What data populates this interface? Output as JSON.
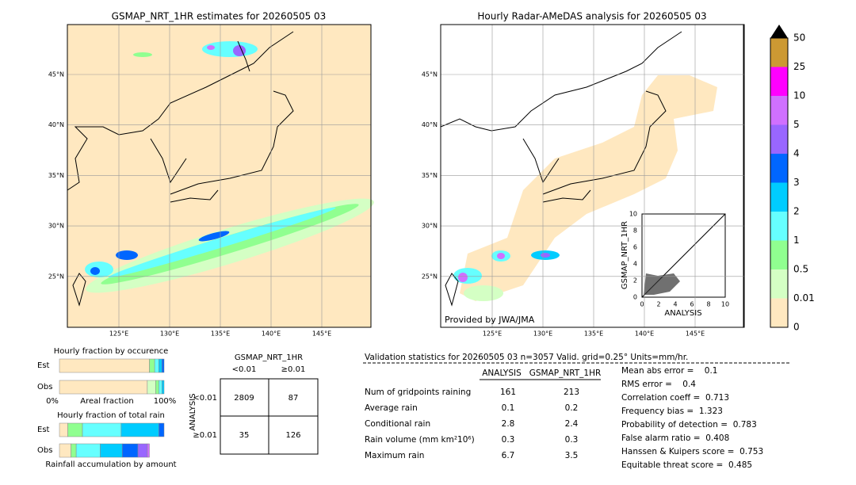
{
  "left_map": {
    "title": "GSMAP_NRT_1HR estimates for 20260505 03",
    "lat_labels": [
      "45°N",
      "40°N",
      "35°N",
      "30°N",
      "25°N"
    ],
    "lon_labels": [
      "125°E",
      "130°E",
      "135°E",
      "140°E",
      "145°E"
    ]
  },
  "right_map": {
    "title": "Hourly Radar-AMeDAS analysis for 20260505 03",
    "lat_labels": [
      "45°N",
      "40°N",
      "35°N",
      "30°N",
      "25°N"
    ],
    "lon_labels": [
      "125°E",
      "130°E",
      "135°E",
      "140°E",
      "145°E"
    ],
    "credit": "Provided by JWA/JMA"
  },
  "colorbar": {
    "labels": [
      "0",
      "0.01",
      "0.5",
      "1",
      "2",
      "3",
      "4",
      "5",
      "10",
      "25",
      "50"
    ],
    "colors": [
      "#ffe8c0",
      "#d4ffc4",
      "#90ff90",
      "#66ffff",
      "#00ccff",
      "#0066ff",
      "#9966ff",
      "#d070ff",
      "#ff00ff",
      "#cc9933"
    ],
    "extend_color": "#000000"
  },
  "scatter": {
    "xlabel": "ANALYSIS",
    "ylabel": "GSMAP_NRT_1HR",
    "xticks": [
      0,
      2,
      4,
      6,
      8,
      10
    ],
    "yticks": [
      0,
      2,
      4,
      6,
      8,
      10
    ],
    "lim": [
      0,
      10
    ]
  },
  "occurrence": {
    "title": "Hourly fraction by occurence",
    "rows": [
      "Est",
      "Obs"
    ],
    "left": "0%",
    "middle": "Areal fraction",
    "right": "100%",
    "segments": [
      [
        86,
        5,
        4,
        3,
        2
      ],
      [
        84,
        8,
        3,
        3,
        2
      ]
    ],
    "colors": [
      [
        "#ffe8c0",
        "#90ff90",
        "#66ffff",
        "#00ccff",
        "#0066ff"
      ],
      [
        "#ffe8c0",
        "#d4ffc4",
        "#90ff90",
        "#66ffff",
        "#00ccff"
      ]
    ]
  },
  "total_rain": {
    "title": "Hourly fraction of total rain",
    "rows": [
      "Est",
      "Obs"
    ],
    "footer": "Rainfall accumulation by amount",
    "segments": [
      [
        8,
        14,
        37,
        36,
        5
      ],
      [
        11,
        5,
        23,
        21,
        15,
        9,
        2
      ]
    ],
    "colors": [
      [
        "#ffe8c0",
        "#90ff90",
        "#66ffff",
        "#00ccff",
        "#0066ff"
      ],
      [
        "#ffe8c0",
        "#90ff90",
        "#66ffff",
        "#00ccff",
        "#0066ff",
        "#9966ff",
        "#d070ff"
      ]
    ]
  },
  "contingency": {
    "title": "GSMAP_NRT_1HR",
    "col_labels": [
      "<0.01",
      "≥0.01"
    ],
    "row_title": "ANALYSIS",
    "row_labels": [
      "<0.01",
      "≥0.01"
    ],
    "cells": [
      [
        2809,
        87
      ],
      [
        35,
        126
      ]
    ]
  },
  "validation": {
    "header": "Validation statistics for 20260505 03  n=3057 Valid. grid=0.25° Units=mm/hr.",
    "columns": [
      "ANALYSIS",
      "GSMAP_NRT_1HR"
    ],
    "rows": [
      {
        "label": "Num of gridpoints raining",
        "values": [
          "161",
          "213"
        ]
      },
      {
        "label": "Average rain",
        "values": [
          "0.1",
          "0.2"
        ]
      },
      {
        "label": "Conditional rain",
        "values": [
          "2.8",
          "2.4"
        ]
      },
      {
        "label": "Rain volume (mm km²10⁶)",
        "values": [
          "0.3",
          "0.3"
        ]
      },
      {
        "label": "Maximum rain",
        "values": [
          "6.7",
          "3.5"
        ]
      }
    ],
    "scores": [
      "Mean abs error =    0.1",
      "RMS error =    0.4",
      "Correlation coeff =  0.713",
      "Frequency bias =  1.323",
      "Probability of detection =  0.783",
      "False alarm ratio =  0.408",
      "Hanssen & Kuipers score =  0.753",
      "Equitable threat score =  0.485"
    ]
  }
}
